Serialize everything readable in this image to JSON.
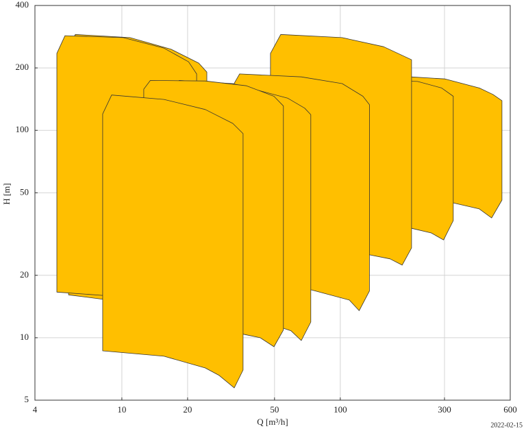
{
  "chart_data": {
    "type": "polygon",
    "xlabel": "Q [m³/h]",
    "ylabel": "H [m]",
    "annotation": "2022-02-15",
    "xscale": "log",
    "yscale": "log",
    "grid": true,
    "xlim": [
      4,
      600
    ],
    "xticks": [
      4,
      10,
      20,
      50,
      100,
      300,
      600
    ],
    "ylim": [
      5,
      400
    ],
    "yticks": [
      5,
      10,
      20,
      50,
      100,
      200,
      400
    ],
    "series": [
      {
        "color": "#ffbf00",
        "x": [
          5.7,
          5.7,
          6.12,
          10.9,
          16.8,
          22.5,
          24.5,
          24.5,
          16.8
        ],
        "values": [
          16.1,
          249,
          290,
          280,
          246,
          211,
          191,
          12.8,
          13.9
        ]
      },
      {
        "color": "#ffbf00",
        "x": [
          5.04,
          5.04,
          5.49,
          10.15,
          15.6,
          20.2,
          22.0,
          22.0,
          15.6,
          8.17
        ],
        "values": [
          16.6,
          235,
          286,
          280,
          249,
          214,
          187,
          13.9,
          15.0,
          16.0
        ]
      },
      {
        "color": "#ffbf00",
        "x": [
          210,
          210,
          302,
          433,
          500,
          550,
          550,
          493,
          433,
          329
        ],
        "values": [
          46.8,
          181,
          177,
          160,
          149,
          139,
          46.1,
          37.8,
          41.8,
          44.7
        ]
      },
      {
        "color": "#ffbf00",
        "x": [
          158,
          158,
          226,
          291,
          329,
          329,
          297,
          261,
          212
        ],
        "values": [
          34.5,
          174,
          172,
          160,
          146,
          36.7,
          29.6,
          32.0,
          33.7
        ]
      },
      {
        "color": "#ffbf00",
        "x": [
          47.9,
          47.9,
          53.4,
          102,
          158,
          212,
          212,
          192,
          169,
          136
        ],
        "values": [
          27.5,
          235,
          290,
          280,
          253,
          219,
          27.1,
          22.4,
          24.0,
          25.1
        ]
      },
      {
        "color": "#ffbf00",
        "x": [
          32.2,
          32.2,
          34.6,
          66.3,
          102,
          127,
          136,
          136,
          122,
          110,
          73.9
        ],
        "values": [
          17.4,
          164,
          187,
          181,
          168,
          146,
          133,
          16.8,
          13.5,
          15.2,
          17.0
        ]
      },
      {
        "color": "#ffbf00",
        "x": [
          18.3,
          18.3,
          32.2,
          57.4,
          68.7,
          73.3,
          73.3,
          66.3,
          59.5,
          49.7
        ],
        "values": [
          11.0,
          174,
          168,
          143,
          128,
          119,
          11.9,
          9.69,
          10.8,
          11.5
        ]
      },
      {
        "color": "#ffbf00",
        "x": [
          12.6,
          12.6,
          13.5,
          24.1,
          37.2,
          49.7,
          54.9,
          54.9,
          49.7,
          43.0,
          35.9
        ],
        "values": [
          9.47,
          158,
          174,
          173,
          164,
          146,
          131,
          10.9,
          9.05,
          10.0,
          10.4
        ]
      },
      {
        "color": "#ffbf00",
        "x": [
          8.17,
          8.17,
          8.98,
          15.6,
          24.1,
          32.2,
          35.9,
          35.9,
          32.7,
          27.9,
          24.1,
          15.6
        ],
        "values": [
          8.65,
          120,
          148,
          141,
          126,
          108,
          96.4,
          6.99,
          5.73,
          6.58,
          7.15,
          8.14
        ]
      }
    ]
  }
}
